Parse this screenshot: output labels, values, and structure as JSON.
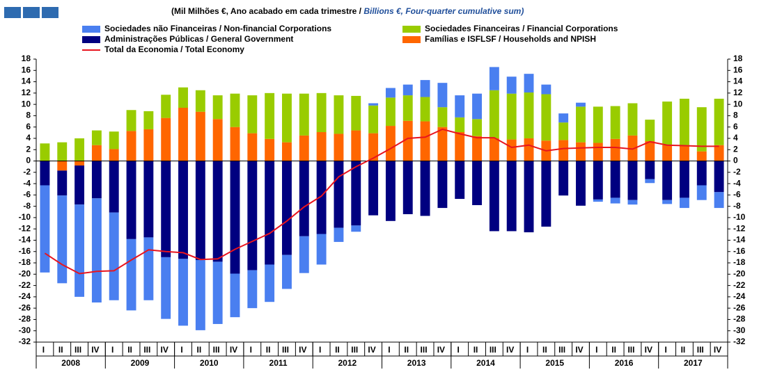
{
  "chart_data": {
    "type": "bar",
    "title_pt": "(Mil Milhões €, Ano acabado em cada trimestre /",
    "title_en": "Billions €, Four-quarter cumulative sum)",
    "categories": [
      "I",
      "II",
      "III",
      "IV",
      "I",
      "II",
      "III",
      "IV",
      "I",
      "II",
      "III",
      "IV",
      "I",
      "II",
      "III",
      "IV",
      "I",
      "II",
      "III",
      "IV",
      "I",
      "II",
      "III",
      "IV",
      "I",
      "II",
      "III",
      "IV",
      "I",
      "II",
      "III",
      "IV",
      "I",
      "II",
      "III",
      "IV",
      "I",
      "II",
      "III",
      "IV"
    ],
    "years": [
      "2008",
      "2009",
      "2010",
      "2011",
      "2012",
      "2013",
      "2014",
      "2015",
      "2016",
      "2017"
    ],
    "series": [
      {
        "name": "Sociedades não Financeiras / Non-financial Corporations",
        "color": "#4a7ff0",
        "values": [
          -15.4,
          -15.5,
          -16.3,
          -18.4,
          -15.5,
          -12.6,
          -11.1,
          -10.9,
          -11.8,
          -12.4,
          -11.0,
          -7.7,
          -6.7,
          -6.6,
          -6.0,
          -6.5,
          -5.4,
          -2.5,
          -1.1,
          0.4,
          1.7,
          1.9,
          3.0,
          4.3,
          3.9,
          4.5,
          4.1,
          3.0,
          3.3,
          1.7,
          1.6,
          0.7,
          -0.4,
          -1.0,
          -0.8,
          -0.7,
          -0.7,
          -1.8,
          -2.6,
          -2.8
        ]
      },
      {
        "name": "Sociedades Financeiras / Financial Corporations",
        "color": "#99cc00",
        "values": [
          3.1,
          3.3,
          4.0,
          2.6,
          3.1,
          3.7,
          3.2,
          4.1,
          3.6,
          3.8,
          4.2,
          5.9,
          6.7,
          8.1,
          8.6,
          7.4,
          6.9,
          6.8,
          6.1,
          4.9,
          5.0,
          4.5,
          4.3,
          3.5,
          2.6,
          3.0,
          8.5,
          8.1,
          8.1,
          8.2,
          3.1,
          6.3,
          6.4,
          5.8,
          5.7,
          3.8,
          7.7,
          8.2,
          7.8,
          8.2
        ]
      },
      {
        "name": "Administrações Públicas / General Government",
        "color": "#000080",
        "values": [
          -4.3,
          -4.4,
          -6.9,
          -6.6,
          -9.1,
          -13.8,
          -13.5,
          -17.0,
          -17.3,
          -17.5,
          -17.8,
          -19.9,
          -19.3,
          -18.3,
          -16.6,
          -13.3,
          -12.9,
          -11.8,
          -11.4,
          -9.6,
          -10.6,
          -9.4,
          -9.7,
          -8.3,
          -6.7,
          -7.8,
          -12.4,
          -12.4,
          -12.6,
          -11.6,
          -6.1,
          -7.9,
          -6.8,
          -6.5,
          -6.9,
          -3.2,
          -6.9,
          -6.5,
          -4.3,
          -5.5
        ]
      },
      {
        "name": "Famílias e ISFLSF / Households and NPISH",
        "color": "#ff6600",
        "values": [
          0,
          -1.7,
          -0.8,
          2.8,
          2.1,
          5.3,
          5.6,
          7.6,
          9.4,
          8.7,
          7.4,
          6.0,
          4.9,
          3.9,
          3.3,
          4.5,
          5.1,
          4.8,
          5.4,
          4.9,
          6.2,
          7.1,
          7.0,
          6.0,
          5.1,
          4.4,
          4.0,
          3.8,
          4.0,
          3.6,
          3.7,
          3.3,
          3.2,
          3.9,
          4.5,
          3.5,
          2.8,
          2.8,
          1.7,
          2.8
        ]
      },
      {
        "name": "Total da Economia / Total Economy",
        "color": "#e8141e",
        "type": "line",
        "values": [
          -16.3,
          -18.3,
          -19.9,
          -19.5,
          -19.4,
          -17.5,
          -15.7,
          -16.0,
          -16.2,
          -17.4,
          -17.3,
          -15.6,
          -14.2,
          -12.8,
          -10.6,
          -8.1,
          -6.2,
          -2.8,
          -1.0,
          0.5,
          2.2,
          4.0,
          4.2,
          5.6,
          4.8,
          4.1,
          4.1,
          2.4,
          2.8,
          1.8,
          2.2,
          2.3,
          2.4,
          2.4,
          2.1,
          3.4,
          2.8,
          2.7,
          2.6,
          2.6
        ]
      }
    ],
    "ylim": [
      -32,
      18
    ],
    "yticks": [
      -32,
      -30,
      -28,
      -26,
      -24,
      -22,
      -20,
      -18,
      -16,
      -14,
      -12,
      -10,
      -8,
      -6,
      -4,
      -2,
      0,
      2,
      4,
      6,
      8,
      10,
      12,
      14,
      16,
      18
    ]
  }
}
